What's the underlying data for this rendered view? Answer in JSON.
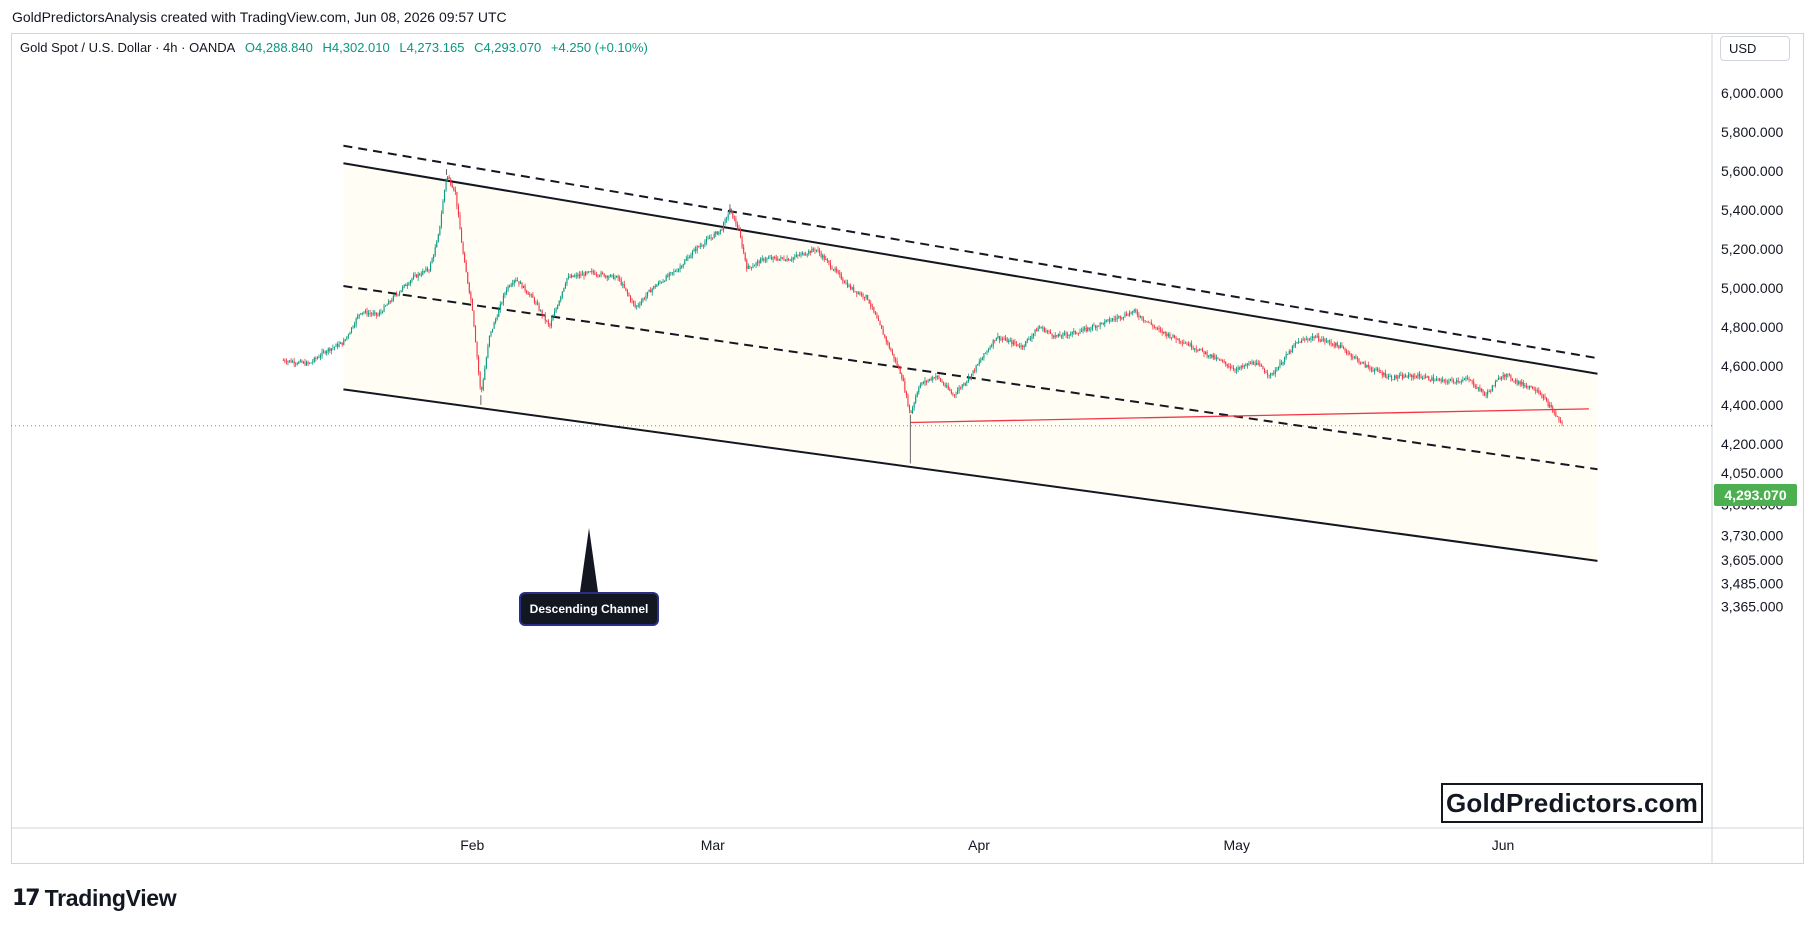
{
  "header": {
    "credit": "GoldPredictorsAnalysis created with TradingView.com, Jun 08, 2026 09:57 UTC"
  },
  "legend": {
    "symbol": "Gold Spot / U.S. Dollar · 4h · OANDA",
    "open": "O4,288.840",
    "high": "H4,302.010",
    "low": "L4,273.165",
    "close": "C4,293.070",
    "change": "+4.250 (+0.10%)"
  },
  "currency": "USD",
  "last_price": "4,293.070",
  "watermark": "GoldPredictors.com",
  "callout": "Descending Channel",
  "footer": {
    "brand": "TradingView"
  },
  "colors": {
    "up": "#089981",
    "down": "#f23645",
    "last_price_badge": "#4caf50",
    "support_line": "#f23645",
    "channel_line": "#131722",
    "channel_fill": "#fffdf4"
  },
  "chart_data": {
    "type": "candlestick",
    "interval": "4h",
    "xaxis_ticks": [
      "Feb",
      "Mar",
      "Apr",
      "May",
      "Jun"
    ],
    "yaxis_ticks": [
      "6,000.000",
      "5,800.000",
      "5,600.000",
      "5,400.000",
      "5,200.000",
      "5,000.000",
      "4,800.000",
      "4,600.000",
      "4,400.000",
      "4,200.000",
      "4,050.000",
      "3,890.000",
      "3,730.000",
      "3,605.000",
      "3,485.000",
      "3,365.000"
    ],
    "ytick_values": [
      6000,
      5800,
      5600,
      5400,
      5200,
      5000,
      4800,
      4600,
      4400,
      4200,
      4050,
      3890,
      3730,
      3605,
      3485,
      3365
    ],
    "close_path": [
      [
        "2026-01-10",
        4630
      ],
      [
        "2026-01-13",
        4610
      ],
      [
        "2026-01-15",
        4680
      ],
      [
        "2026-01-17",
        4720
      ],
      [
        "2026-01-19",
        4880
      ],
      [
        "2026-01-21",
        4860
      ],
      [
        "2026-01-23",
        4960
      ],
      [
        "2026-01-25",
        5050
      ],
      [
        "2026-01-27",
        5100
      ],
      [
        "2026-01-28",
        5250
      ],
      [
        "2026-01-29",
        5580
      ],
      [
        "2026-01-30",
        5500
      ],
      [
        "2026-01-31",
        5150
      ],
      [
        "2026-02-01",
        4900
      ],
      [
        "2026-02-02",
        4450
      ],
      [
        "2026-02-03",
        4750
      ],
      [
        "2026-02-05",
        5000
      ],
      [
        "2026-02-06",
        5050
      ],
      [
        "2026-02-08",
        4950
      ],
      [
        "2026-02-10",
        4800
      ],
      [
        "2026-02-12",
        5050
      ],
      [
        "2026-02-15",
        5080
      ],
      [
        "2026-02-18",
        5050
      ],
      [
        "2026-02-20",
        4900
      ],
      [
        "2026-02-22",
        5000
      ],
      [
        "2026-02-25",
        5100
      ],
      [
        "2026-02-27",
        5200
      ],
      [
        "2026-03-02",
        5300
      ],
      [
        "2026-03-03",
        5400
      ],
      [
        "2026-03-04",
        5300
      ],
      [
        "2026-03-05",
        5100
      ],
      [
        "2026-03-07",
        5150
      ],
      [
        "2026-03-10",
        5150
      ],
      [
        "2026-03-13",
        5200
      ],
      [
        "2026-03-15",
        5100
      ],
      [
        "2026-03-17",
        5000
      ],
      [
        "2026-03-19",
        4950
      ],
      [
        "2026-03-21",
        4750
      ],
      [
        "2026-03-23",
        4550
      ],
      [
        "2026-03-24",
        4350
      ],
      [
        "2026-03-25",
        4500
      ],
      [
        "2026-03-27",
        4550
      ],
      [
        "2026-03-29",
        4450
      ],
      [
        "2026-03-31",
        4550
      ],
      [
        "2026-04-03",
        4750
      ],
      [
        "2026-04-06",
        4700
      ],
      [
        "2026-04-08",
        4800
      ],
      [
        "2026-04-10",
        4750
      ],
      [
        "2026-04-13",
        4780
      ],
      [
        "2026-04-16",
        4830
      ],
      [
        "2026-04-19",
        4880
      ],
      [
        "2026-04-22",
        4780
      ],
      [
        "2026-04-25",
        4720
      ],
      [
        "2026-04-28",
        4650
      ],
      [
        "2026-05-01",
        4580
      ],
      [
        "2026-05-03",
        4620
      ],
      [
        "2026-05-05",
        4550
      ],
      [
        "2026-05-08",
        4720
      ],
      [
        "2026-05-10",
        4750
      ],
      [
        "2026-05-13",
        4700
      ],
      [
        "2026-05-16",
        4600
      ],
      [
        "2026-05-19",
        4540
      ],
      [
        "2026-05-22",
        4550
      ],
      [
        "2026-05-25",
        4520
      ],
      [
        "2026-05-28",
        4530
      ],
      [
        "2026-05-30",
        4450
      ],
      [
        "2026-06-01",
        4560
      ],
      [
        "2026-06-03",
        4510
      ],
      [
        "2026-06-05",
        4480
      ],
      [
        "2026-06-06",
        4420
      ],
      [
        "2026-06-08",
        4293
      ]
    ],
    "trendlines": [
      {
        "kind": "upper-channel",
        "style": "solid",
        "from": [
          "2026-01-17",
          5640
        ],
        "to": [
          "2026-06-12",
          4560
        ]
      },
      {
        "kind": "outer-upper",
        "style": "dashed",
        "from": [
          "2026-01-17",
          5730
        ],
        "to": [
          "2026-06-12",
          4640
        ]
      },
      {
        "kind": "mid-channel",
        "style": "dashed",
        "from": [
          "2026-01-17",
          5010
        ],
        "to": [
          "2026-06-12",
          4070
        ]
      },
      {
        "kind": "lower-channel",
        "style": "solid",
        "from": [
          "2026-01-17",
          4480
        ],
        "to": [
          "2026-06-12",
          3600
        ]
      },
      {
        "kind": "support",
        "style": "solid",
        "color": "#f23645",
        "from": [
          "2026-03-24",
          4310
        ],
        "to": [
          "2026-06-11",
          4380
        ]
      }
    ],
    "last_price": 4293.07,
    "grid": false,
    "legend": "top-left"
  }
}
